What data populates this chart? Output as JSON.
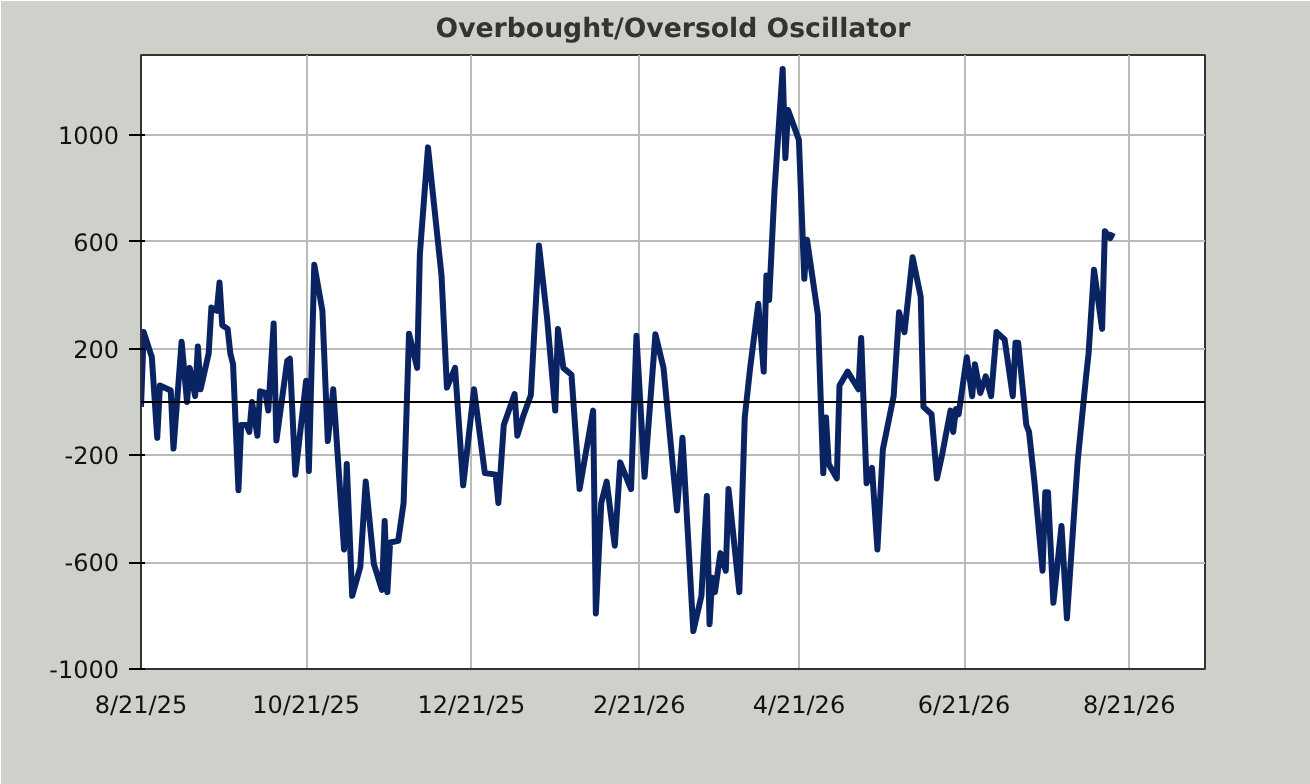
{
  "chart_data": {
    "type": "line",
    "title": "Overbought/Oversold Oscillator",
    "x": [
      "2025-08-21",
      "2025-08-22",
      "2025-08-25",
      "2025-08-27",
      "2025-08-28",
      "2025-09-01",
      "2025-09-02",
      "2025-09-05",
      "2025-09-07",
      "2025-09-08",
      "2025-09-10",
      "2025-09-11",
      "2025-09-12",
      "2025-09-15",
      "2025-09-16",
      "2025-09-18",
      "2025-09-19",
      "2025-09-20",
      "2025-09-22",
      "2025-09-23",
      "2025-09-24",
      "2025-09-26",
      "2025-09-27",
      "2025-09-29",
      "2025-09-30",
      "2025-10-01",
      "2025-10-03",
      "2025-10-04",
      "2025-10-06",
      "2025-10-07",
      "2025-10-09",
      "2025-10-10",
      "2025-10-14",
      "2025-10-15",
      "2025-10-17",
      "2025-10-21",
      "2025-10-22",
      "2025-10-24",
      "2025-10-27",
      "2025-10-29",
      "2025-10-31",
      "2025-11-04",
      "2025-11-05",
      "2025-11-07",
      "2025-11-10",
      "2025-11-12",
      "2025-11-15",
      "2025-11-18",
      "2025-11-19",
      "2025-11-20",
      "2025-11-21",
      "2025-11-24",
      "2025-11-26",
      "2025-11-28",
      "2025-12-01",
      "2025-12-02",
      "2025-12-05",
      "2025-12-10",
      "2025-12-12",
      "2025-12-15",
      "2025-12-18",
      "2025-12-22",
      "2025-12-26",
      "2025-12-30",
      "2025-12-31",
      "2026-01-02",
      "2026-01-06",
      "2026-01-07",
      "2026-01-09",
      "2026-01-12",
      "2026-01-15",
      "2026-01-18",
      "2026-01-21",
      "2026-01-22",
      "2026-01-24",
      "2026-01-27",
      "2026-01-30",
      "2026-02-04",
      "2026-02-05",
      "2026-02-07",
      "2026-02-09",
      "2026-02-12",
      "2026-02-14",
      "2026-02-18",
      "2026-02-20",
      "2026-02-23",
      "2026-02-27",
      "2026-03-02",
      "2026-03-04",
      "2026-03-07",
      "2026-03-09",
      "2026-03-13",
      "2026-03-16",
      "2026-03-18",
      "2026-03-19",
      "2026-03-20",
      "2026-03-21",
      "2026-03-23",
      "2026-03-25",
      "2026-03-26",
      "2026-03-30",
      "2026-04-01",
      "2026-04-03",
      "2026-04-06",
      "2026-04-08",
      "2026-04-09",
      "2026-04-10",
      "2026-04-12",
      "2026-04-15",
      "2026-04-16",
      "2026-04-17",
      "2026-04-21",
      "2026-04-23",
      "2026-04-24",
      "2026-04-28",
      "2026-04-30",
      "2026-05-01",
      "2026-05-02",
      "2026-05-05",
      "2026-05-06",
      "2026-05-09",
      "2026-05-13",
      "2026-05-14",
      "2026-05-16",
      "2026-05-18",
      "2026-05-20",
      "2026-05-22",
      "2026-05-26",
      "2026-05-28",
      "2026-05-30",
      "2026-06-02",
      "2026-06-05",
      "2026-06-06",
      "2026-06-09",
      "2026-06-11",
      "2026-06-13",
      "2026-06-16",
      "2026-06-17",
      "2026-06-18",
      "2026-06-19",
      "2026-06-22",
      "2026-06-24",
      "2026-06-25",
      "2026-06-27",
      "2026-06-29",
      "2026-07-01",
      "2026-07-03",
      "2026-07-06",
      "2026-07-09",
      "2026-07-10",
      "2026-07-11",
      "2026-07-14",
      "2026-07-15",
      "2026-07-17",
      "2026-07-20",
      "2026-07-21",
      "2026-07-22",
      "2026-07-24",
      "2026-07-27",
      "2026-07-29",
      "2026-08-02",
      "2026-08-05",
      "2026-08-06",
      "2026-08-08",
      "2026-08-11",
      "2026-08-12",
      "2026-08-14",
      "2026-08-15"
    ],
    "series": [
      {
        "color": "#0a2463",
        "values": [
          -18,
          262,
          168,
          -134,
          62,
          43,
          -174,
          226,
          0,
          128,
          22,
          208,
          48,
          182,
          354,
          342,
          448,
          288,
          274,
          182,
          142,
          -330,
          -86,
          -86,
          -112,
          0,
          -126,
          40,
          34,
          -32,
          294,
          -144,
          154,
          162,
          -272,
          80,
          -258,
          514,
          342,
          -146,
          48,
          -552,
          -232,
          -726,
          -618,
          -298,
          -606,
          -704,
          -446,
          -712,
          -526,
          -520,
          -378,
          256,
          128,
          554,
          954,
          474,
          54,
          128,
          -312,
          48,
          -266,
          -272,
          -378,
          -86,
          30,
          -126,
          -58,
          26,
          586,
          314,
          -32,
          274,
          128,
          102,
          -326,
          -32,
          -792,
          -378,
          -298,
          -538,
          -226,
          -326,
          248,
          -280,
          254,
          128,
          -86,
          -406,
          -134,
          -858,
          -726,
          -352,
          -832,
          -658,
          -712,
          -566,
          -632,
          -326,
          -712,
          -58,
          128,
          368,
          114,
          474,
          382,
          794,
          1248,
          914,
          1094,
          982,
          462,
          608,
          328,
          -266,
          -58,
          -232,
          -286,
          62,
          114,
          48,
          240,
          -304,
          -246,
          -552,
          -178,
          22,
          336,
          262,
          542,
          394,
          -18,
          -46,
          -286,
          -192,
          -32,
          -112,
          -26,
          -46,
          168,
          22,
          142,
          34,
          96,
          22,
          262,
          234,
          22,
          222,
          222,
          -86,
          -112,
          -298,
          -632,
          -338,
          -338,
          -752,
          -464,
          -810,
          -218,
          88,
          182,
          496,
          274,
          640,
          614,
          634
        ]
      }
    ],
    "xlim": [
      "2025-08-21",
      "2026-09-18"
    ],
    "xticks": [
      {
        "value": "2025-08-21",
        "label": "8/21/25"
      },
      {
        "value": "2025-10-21",
        "label": "10/21/25"
      },
      {
        "value": "2025-12-21",
        "label": "12/21/25"
      },
      {
        "value": "2026-02-21",
        "label": "2/21/26"
      },
      {
        "value": "2026-04-21",
        "label": "4/21/26"
      },
      {
        "value": "2026-06-21",
        "label": "6/21/26"
      },
      {
        "value": "2026-08-21",
        "label": "8/21/26"
      }
    ],
    "ylim": [
      -1000,
      1300
    ],
    "yticks": [
      -1000,
      -600,
      -200,
      200,
      600,
      1000
    ],
    "ref_lines": [
      {
        "axis": "y",
        "value": 0,
        "color": "#000000"
      }
    ],
    "grid": true,
    "marker": "none",
    "line_style": "solid"
  }
}
